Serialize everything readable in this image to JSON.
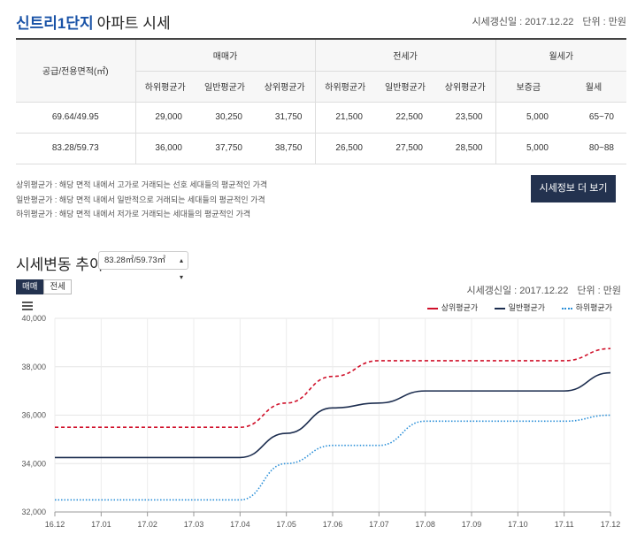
{
  "header": {
    "brand": "신트리1단지",
    "title_rest": "아파트 시세",
    "updated": "시세갱신일 : 2017.12.22",
    "unit": "단위 : 만원"
  },
  "table": {
    "area_header": "공급/전용면적(㎡)",
    "groups": [
      "매매가",
      "전세가",
      "월세가"
    ],
    "subheaders": [
      "하위평균가",
      "일반평균가",
      "상위평균가",
      "하위평균가",
      "일반평균가",
      "상위평균가",
      "보증금",
      "월세"
    ],
    "rows": [
      {
        "area": "69.64/49.95",
        "cells": [
          "29,000",
          "30,250",
          "31,750",
          "21,500",
          "22,500",
          "23,500",
          "5,000",
          "65~70"
        ]
      },
      {
        "area": "83.28/59.73",
        "cells": [
          "36,000",
          "37,750",
          "38,750",
          "26,500",
          "27,500",
          "28,500",
          "5,000",
          "80~88"
        ]
      }
    ]
  },
  "notes": [
    "상위평균가 : 해당 면적 내에서 고가로 거래되는 선호 세대들의 평균적인 가격",
    "일반평균가 : 해당 면적 내에서 일반적으로 거래되는 세대들의 평균적인 가격",
    "하위평균가 : 해당 면적 내에서 저가로 거래되는 세대들의 평균적인 가격"
  ],
  "more_button": "시세정보 더 보기",
  "trend": {
    "title": "시세변동 추이",
    "select_value": "83.28㎡/59.73㎡",
    "tabs": [
      "매매",
      "전세"
    ],
    "updated": "시세갱신일 : 2017.12.22",
    "unit": "단위 : 만원"
  },
  "colors": {
    "brand": "#1a53a7",
    "button_bg": "#23324f",
    "upper": "#d0102a",
    "normal": "#1c2d4f",
    "lower": "#2a8fd8"
  },
  "chart_data": {
    "type": "line",
    "categories": [
      "16.12",
      "17.01",
      "17.02",
      "17.03",
      "17.04",
      "17.05",
      "17.06",
      "17.07",
      "17.08",
      "17.09",
      "17.10",
      "17.11",
      "17.12"
    ],
    "ylim": [
      32000,
      40000
    ],
    "yticks": [
      32000,
      34000,
      36000,
      38000,
      40000
    ],
    "ytick_labels": [
      "32,000",
      "34,000",
      "36,000",
      "38,000",
      "40,000"
    ],
    "series": [
      {
        "name": "상위평균가",
        "values": [
          35500,
          35500,
          35500,
          35500,
          35500,
          36500,
          37600,
          38250,
          38250,
          38250,
          38250,
          38250,
          38750
        ]
      },
      {
        "name": "일반평균가",
        "values": [
          34250,
          34250,
          34250,
          34250,
          34250,
          35250,
          36300,
          36500,
          37000,
          37000,
          37000,
          37000,
          37750
        ]
      },
      {
        "name": "하위평균가",
        "values": [
          32500,
          32500,
          32500,
          32500,
          32500,
          34000,
          34750,
          34750,
          35750,
          35750,
          35750,
          35750,
          36000
        ]
      }
    ]
  }
}
